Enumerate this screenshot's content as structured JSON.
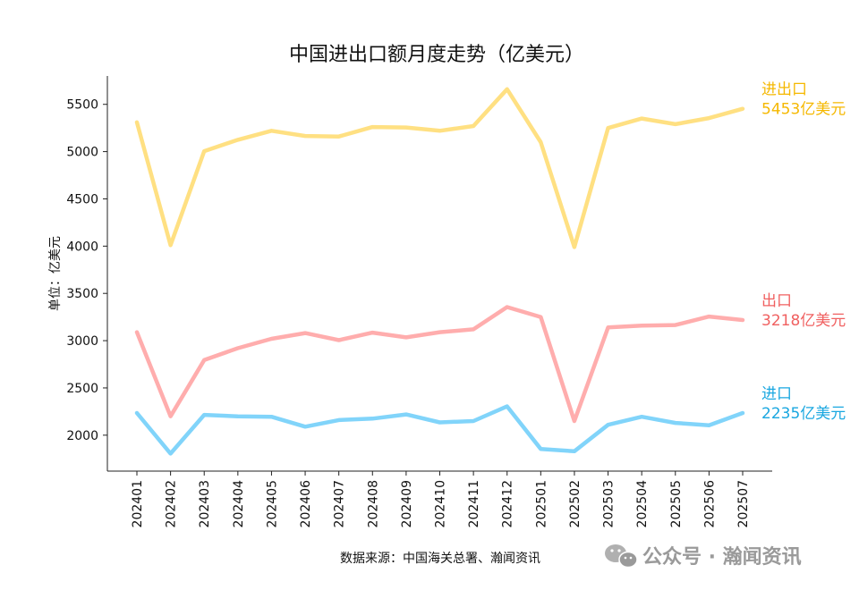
{
  "chart_data": {
    "type": "line",
    "title": "中国进出口额月度走势（亿美元）",
    "ylabel": "单位：亿美元",
    "xlabel": "",
    "ylim": [
      1620,
      5800
    ],
    "yticks": [
      2000,
      2500,
      3000,
      3500,
      4000,
      4500,
      5000,
      5500
    ],
    "categories": [
      "202401",
      "202402",
      "202403",
      "202404",
      "202405",
      "202406",
      "202407",
      "202408",
      "202409",
      "202410",
      "202411",
      "202412",
      "202501",
      "202502",
      "202503",
      "202504",
      "202505",
      "202506",
      "202507"
    ],
    "series": [
      {
        "name": "进出口",
        "color": "#FFE082",
        "label_color": "#F5B800",
        "end_label": "5453亿美元",
        "values": [
          5310,
          4010,
          5005,
          5125,
          5220,
          5165,
          5160,
          5260,
          5255,
          5220,
          5270,
          5660,
          5100,
          3990,
          5250,
          5350,
          5290,
          5355,
          5453
        ]
      },
      {
        "name": "出口",
        "color": "#FFADAD",
        "label_color": "#F06060",
        "end_label": "3218亿美元",
        "values": [
          3090,
          2200,
          2795,
          2920,
          3020,
          3080,
          3005,
          3085,
          3035,
          3090,
          3120,
          3355,
          3250,
          2150,
          3140,
          3160,
          3165,
          3255,
          3218
        ]
      },
      {
        "name": "进口",
        "color": "#81D4FA",
        "label_color": "#1AA7E0",
        "end_label": "2235亿美元",
        "values": [
          2235,
          1805,
          2215,
          2200,
          2195,
          2090,
          2160,
          2175,
          2220,
          2135,
          2150,
          2305,
          1855,
          1830,
          2110,
          2195,
          2130,
          2105,
          2235
        ]
      }
    ],
    "source": "数据来源：中国海关总署、瀚闻资讯"
  },
  "watermark": {
    "icon": "wechat-icon",
    "text": "公众号 · 瀚闻资讯"
  }
}
